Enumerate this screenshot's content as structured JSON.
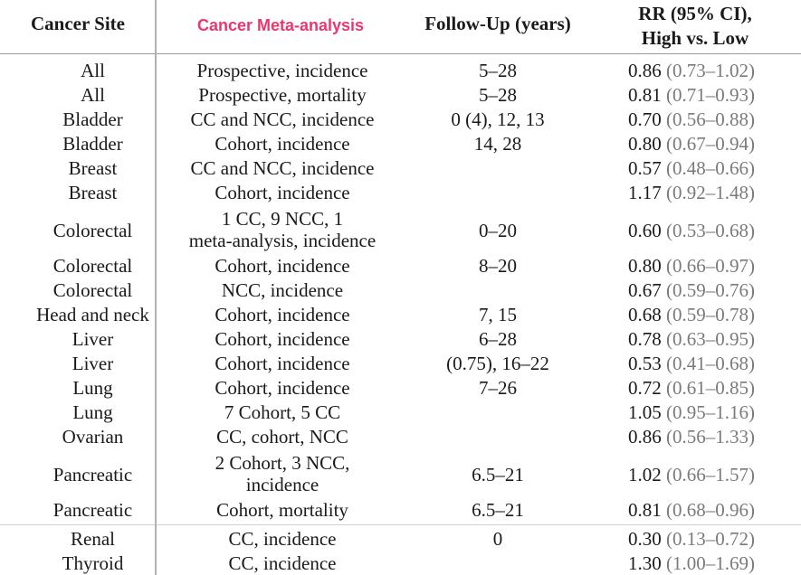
{
  "table": {
    "headers": {
      "site": "Cancer Site",
      "meta": "Cancer Meta-analysis",
      "follow": "Follow-Up (years)",
      "rr_line1": "RR (95% CI),",
      "rr_line2": "High vs. Low"
    },
    "rows": [
      {
        "site": "All",
        "meta": "Prospective, incidence",
        "follow": "5–28",
        "rr": "0.86",
        "ci": "(0.73–1.02)"
      },
      {
        "site": "All",
        "meta": "Prospective, mortality",
        "follow": "5–28",
        "rr": "0.81",
        "ci": "(0.71–0.93)"
      },
      {
        "site": "Bladder",
        "meta": "CC and NCC, incidence",
        "follow": "0 (4), 12, 13",
        "rr": "0.70",
        "ci": "(0.56–0.88)"
      },
      {
        "site": "Bladder",
        "meta": "Cohort, incidence",
        "follow": "14, 28",
        "rr": "0.80",
        "ci": "(0.67–0.94)"
      },
      {
        "site": "Breast",
        "meta": "CC and NCC, incidence",
        "follow": "",
        "rr": "0.57",
        "ci": "(0.48–0.66)"
      },
      {
        "site": "Breast",
        "meta": "Cohort, incidence",
        "follow": "",
        "rr": "1.17",
        "ci": "(0.92–1.48)"
      },
      {
        "site": "Colorectal",
        "meta": "1 CC, 9 NCC, 1",
        "meta2": "meta-analysis, incidence",
        "follow": "0–20",
        "rr": "0.60",
        "ci": "(0.53–0.68)"
      },
      {
        "site": "Colorectal",
        "meta": "Cohort, incidence",
        "follow": "8–20",
        "rr": "0.80",
        "ci": "(0.66–0.97)"
      },
      {
        "site": "Colorectal",
        "meta": "NCC, incidence",
        "follow": "",
        "rr": "0.67",
        "ci": "(0.59–0.76)"
      },
      {
        "site": "Head and neck",
        "meta": "Cohort, incidence",
        "follow": "7, 15",
        "rr": "0.68",
        "ci": "(0.59–0.78)"
      },
      {
        "site": "Liver",
        "meta": "Cohort, incidence",
        "follow": "6–28",
        "rr": "0.78",
        "ci": "(0.63–0.95)"
      },
      {
        "site": "Liver",
        "meta": "Cohort, incidence",
        "follow": "(0.75), 16–22",
        "rr": "0.53",
        "ci": "(0.41–0.68)"
      },
      {
        "site": "Lung",
        "meta": "Cohort, incidence",
        "follow": "7–26",
        "rr": "0.72",
        "ci": "(0.61–0.85)"
      },
      {
        "site": "Lung",
        "meta": "7 Cohort, 5 CC",
        "follow": "",
        "rr": "1.05",
        "ci": "(0.95–1.16)"
      },
      {
        "site": "Ovarian",
        "meta": "CC, cohort, NCC",
        "follow": "",
        "rr": "0.86",
        "ci": "(0.56–1.33)"
      },
      {
        "site": "Pancreatic",
        "meta": "2 Cohort, 3 NCC,",
        "meta2": "incidence",
        "follow": "6.5–21",
        "rr": "1.02",
        "ci": "(0.66–1.57)"
      },
      {
        "site": "Pancreatic",
        "meta": "Cohort, mortality",
        "follow": "6.5–21",
        "rr": "0.81",
        "ci": "(0.68–0.96)"
      },
      {
        "site": "Renal",
        "meta": "CC, incidence",
        "follow": "0",
        "rr": "0.30",
        "ci": "(0.13–0.72)"
      },
      {
        "site": "Thyroid",
        "meta": "CC, incidence",
        "follow": "",
        "rr": "1.30",
        "ci": "(1.00–1.69)"
      }
    ]
  }
}
